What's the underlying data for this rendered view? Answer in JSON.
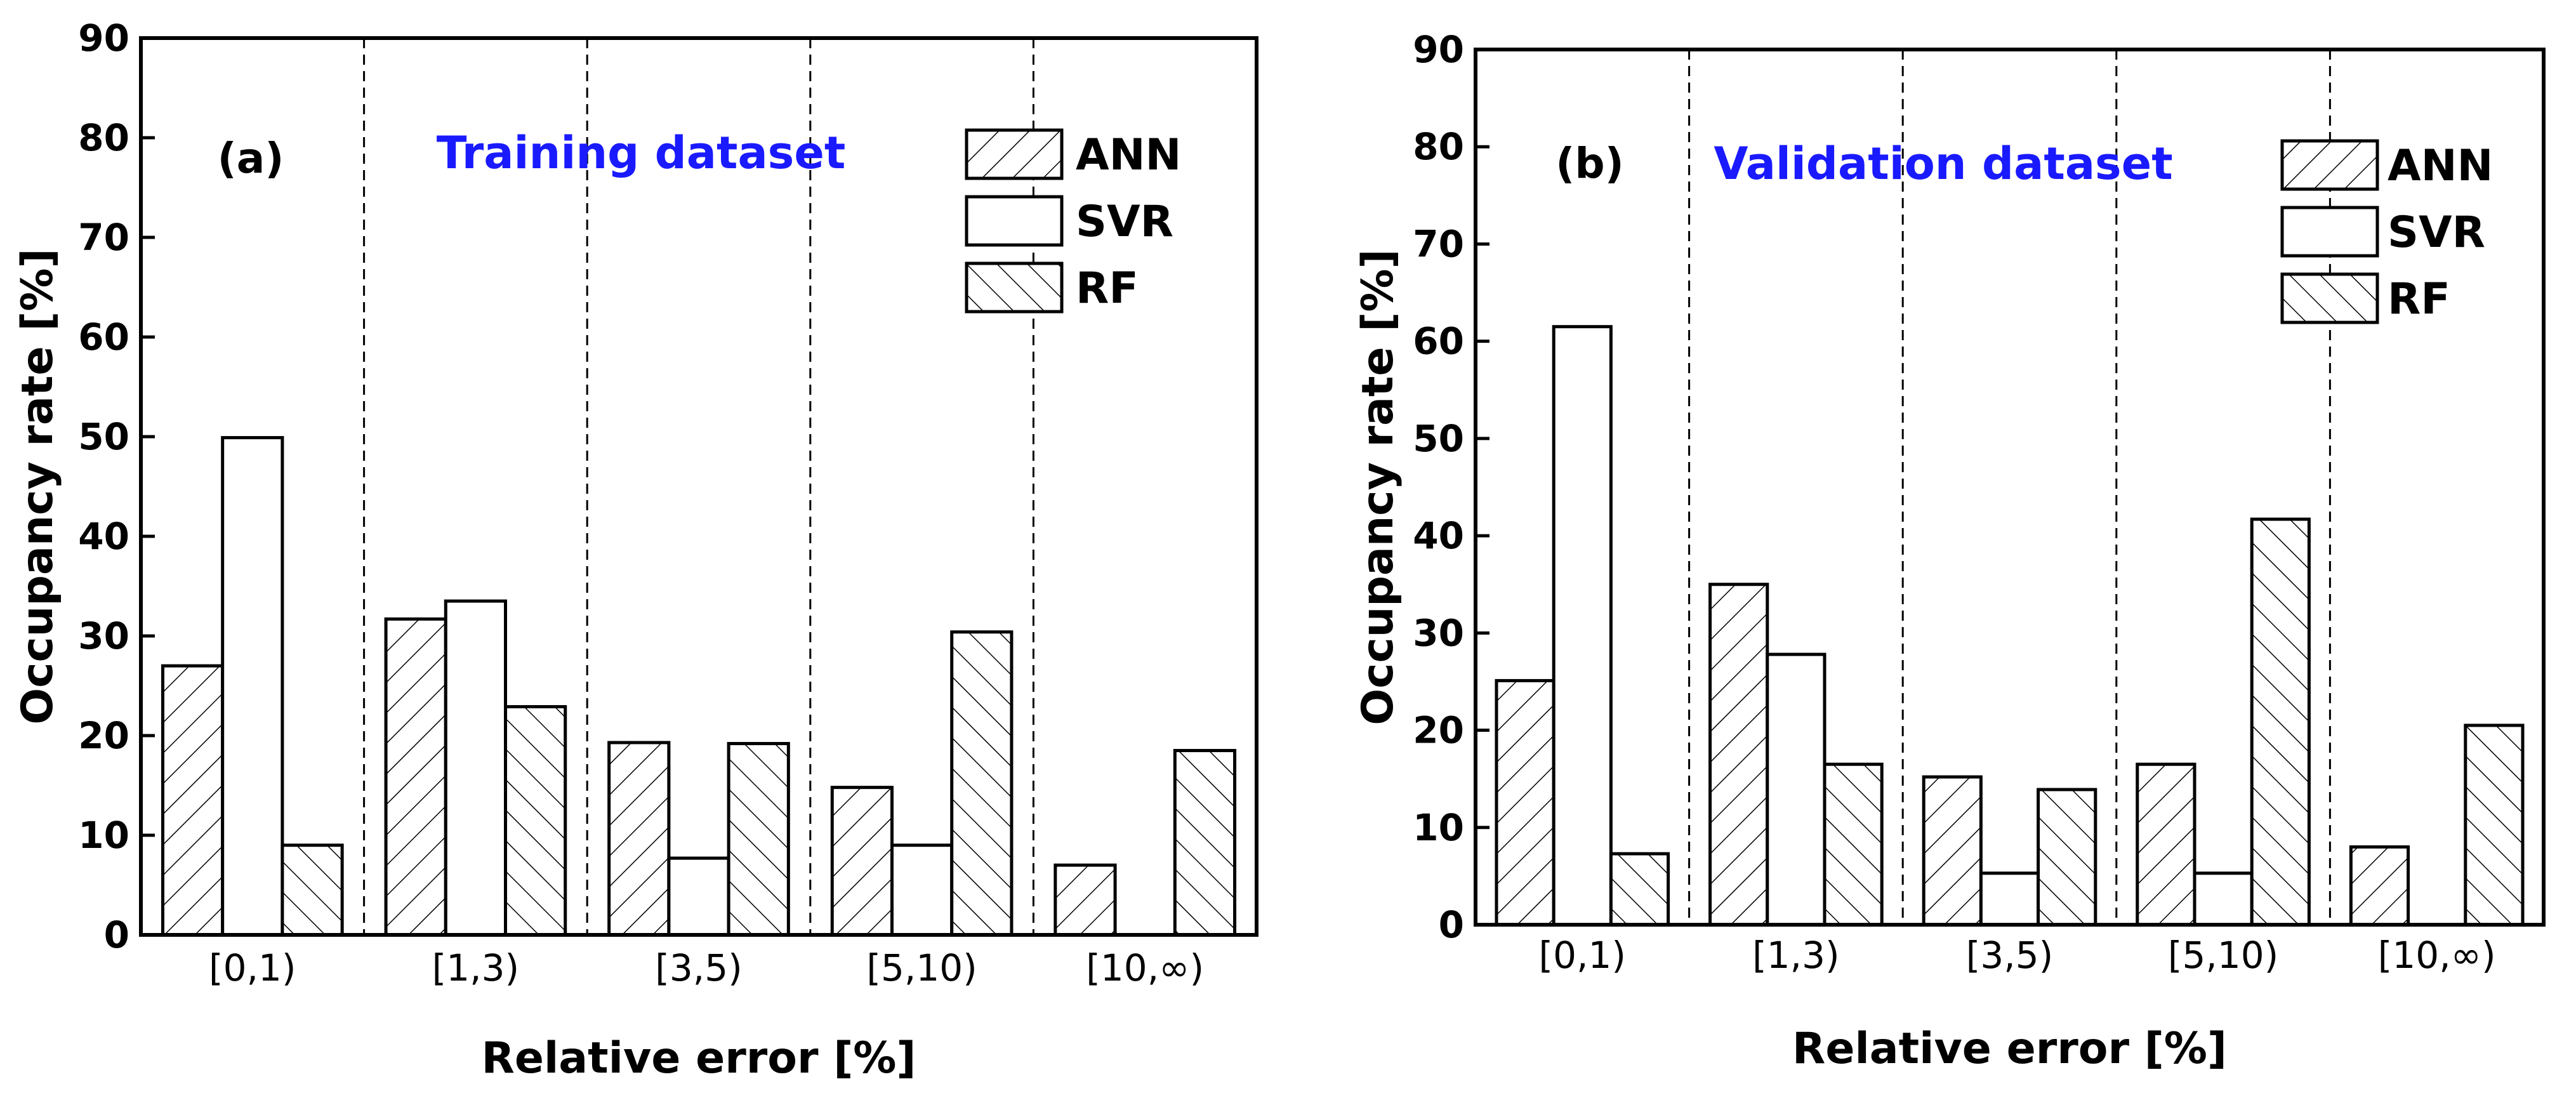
{
  "colors": {
    "title_color": "#1a1aff",
    "bar_stroke": "#000000",
    "bar_fill": "#ffffff"
  },
  "chart_data": [
    {
      "type": "bar",
      "panel_label": "(a)",
      "title": "Training dataset",
      "xlabel": "Relative error [%]",
      "ylabel": "Occupancy rate [%]",
      "ylim": [
        0,
        90
      ],
      "yticks": [
        "0",
        "10",
        "20",
        "30",
        "40",
        "50",
        "60",
        "70",
        "80",
        "90"
      ],
      "categories": [
        "[0,1)",
        "[1,3)",
        "[3,5)",
        "[5,10)",
        "[10,∞)"
      ],
      "series": [
        {
          "name": "ANN",
          "pattern": "hatch-forward",
          "values": [
            27.0,
            31.7,
            19.3,
            14.8,
            7.0
          ]
        },
        {
          "name": "SVR",
          "pattern": "empty",
          "values": [
            49.9,
            33.5,
            7.7,
            9.0,
            0.0
          ]
        },
        {
          "name": "RF",
          "pattern": "hatch-back",
          "values": [
            9.0,
            22.9,
            19.2,
            30.4,
            18.5
          ]
        }
      ],
      "legend_position": "top-right",
      "category_separators": "dashed"
    },
    {
      "type": "bar",
      "panel_label": "(b)",
      "title": "Validation dataset",
      "xlabel": "Relative error [%]",
      "ylabel": "Occupancy rate [%]",
      "ylim": [
        0,
        90
      ],
      "yticks": [
        "0",
        "10",
        "20",
        "30",
        "40",
        "50",
        "60",
        "70",
        "80",
        "90"
      ],
      "categories": [
        "[0,1)",
        "[1,3)",
        "[3,5)",
        "[5,10)",
        "[10,∞)"
      ],
      "series": [
        {
          "name": "ANN",
          "pattern": "hatch-forward",
          "values": [
            25.1,
            35.0,
            15.2,
            16.5,
            8.0
          ]
        },
        {
          "name": "SVR",
          "pattern": "empty",
          "values": [
            61.5,
            27.8,
            5.3,
            5.3,
            0.0
          ]
        },
        {
          "name": "RF",
          "pattern": "hatch-back",
          "values": [
            7.3,
            16.5,
            13.9,
            41.7,
            20.5
          ]
        }
      ],
      "legend_position": "top-right",
      "category_separators": "dashed"
    }
  ]
}
